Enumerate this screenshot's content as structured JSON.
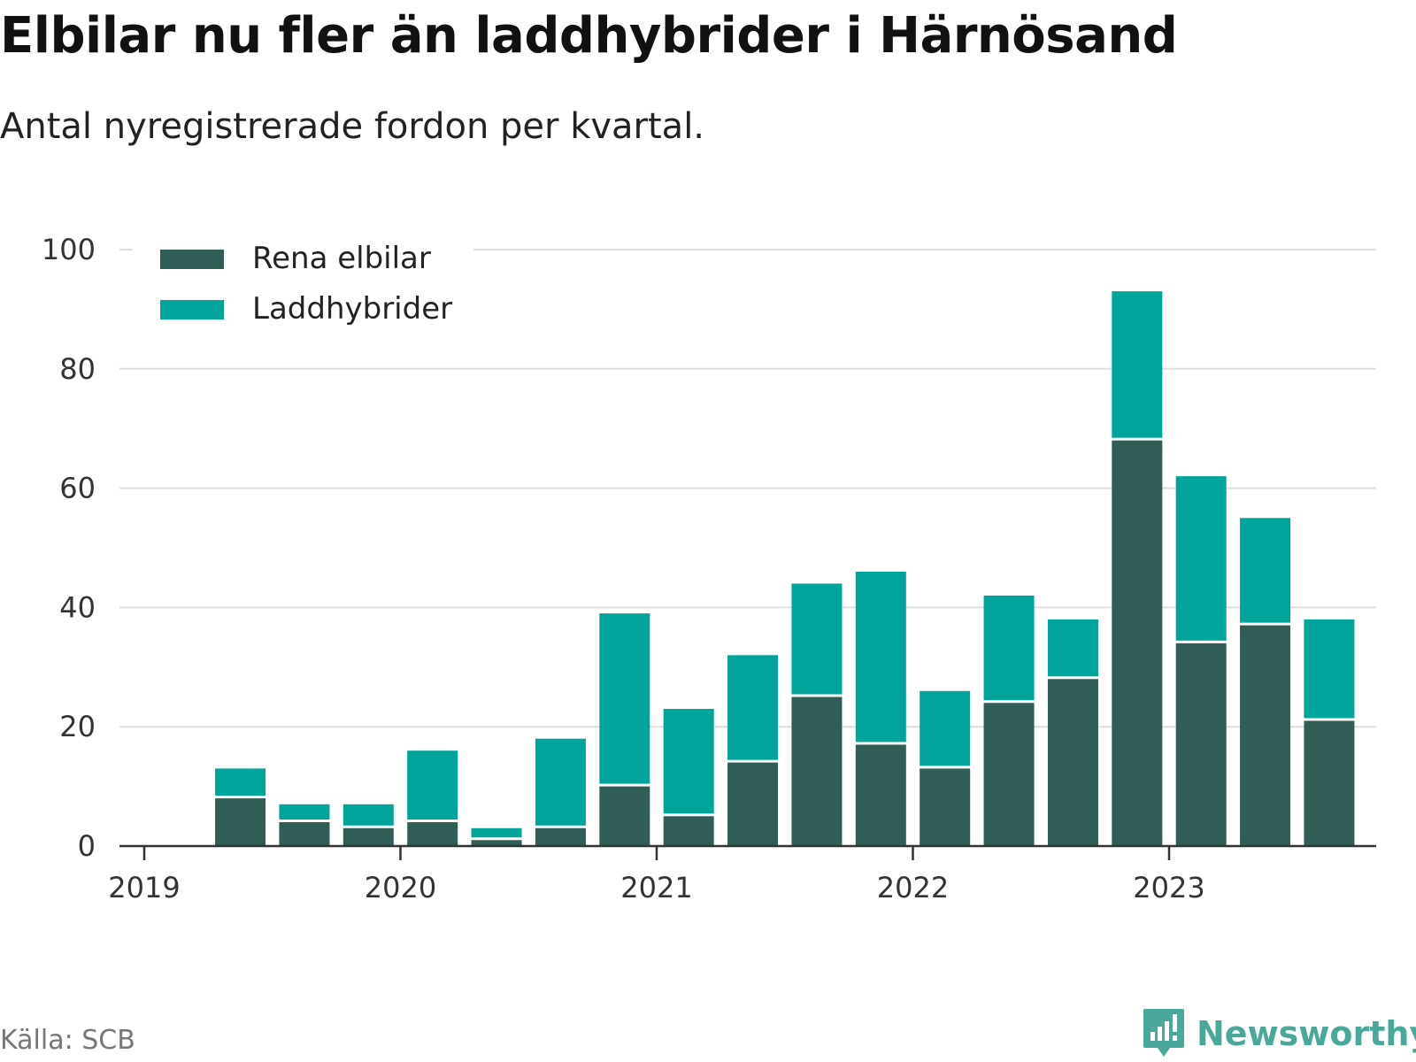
{
  "header": {
    "title": "Elbilar nu fler än laddhybrider i Härnösand",
    "subtitle": "Antal nyregistrerade fordon per kvartal."
  },
  "footer": {
    "source": "Källa: SCB",
    "brand": "Newsworthy",
    "brand_icon": "bar-chart-speech-bubble-icon"
  },
  "colors": {
    "rena_elbilar": "#305e57",
    "laddhybrider": "#00a49a",
    "grid": "#dddddd",
    "axis": "#333333",
    "brand": "#4aa89a"
  },
  "chart_data": {
    "type": "bar",
    "stacked": true,
    "categories": [
      "2019 Q2",
      "2019 Q3",
      "2019 Q4",
      "2020 Q1",
      "2020 Q2",
      "2020 Q3",
      "2020 Q4",
      "2021 Q1",
      "2021 Q2",
      "2021 Q3",
      "2021 Q4",
      "2022 Q1",
      "2022 Q2",
      "2022 Q3",
      "2022 Q4",
      "2023 Q1",
      "2023 Q2",
      "2023 Q3"
    ],
    "x_tick_labels": [
      "2019",
      "2020",
      "2021",
      "2022",
      "2023"
    ],
    "y_ticks": [
      0,
      20,
      40,
      60,
      80,
      100
    ],
    "ylim": [
      0,
      100
    ],
    "grid": true,
    "legend_position": "top-left",
    "series": [
      {
        "name": "Rena elbilar",
        "values": [
          8,
          4,
          3,
          4,
          1,
          3,
          10,
          5,
          14,
          25,
          17,
          13,
          24,
          28,
          68,
          34,
          37,
          21
        ]
      },
      {
        "name": "Laddhybrider",
        "values": [
          5,
          3,
          4,
          12,
          2,
          15,
          29,
          18,
          18,
          19,
          29,
          13,
          18,
          10,
          25,
          28,
          18,
          17
        ]
      }
    ]
  }
}
